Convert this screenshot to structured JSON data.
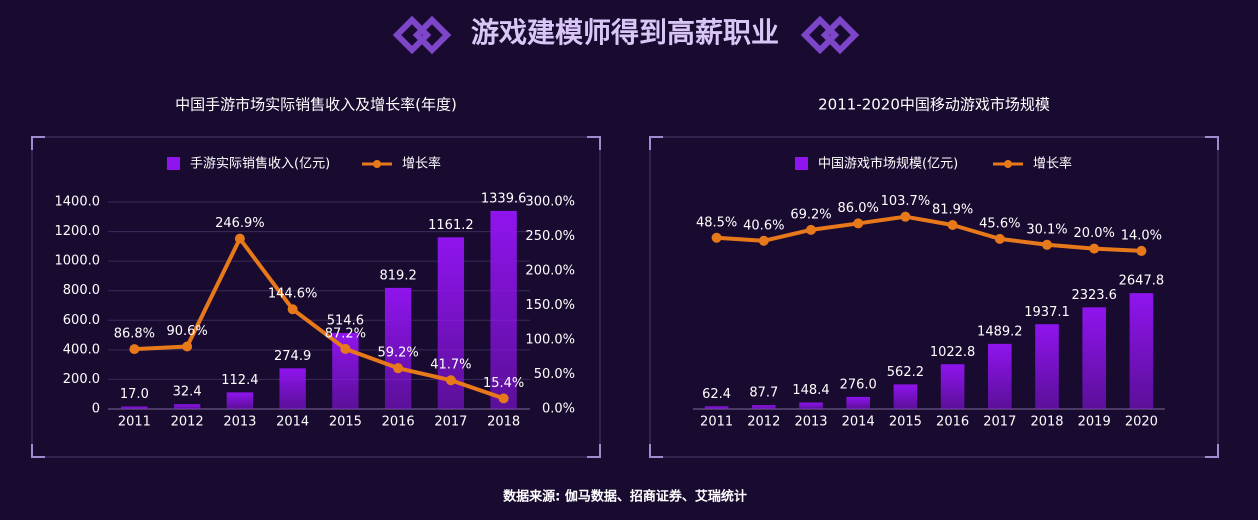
{
  "header": {
    "title": "游戏建模师得到高薪职业"
  },
  "chart_data": [
    {
      "type": "bar",
      "title": "中国手游市场实际销售收入及增长率(年度)",
      "categories": [
        "2011",
        "2012",
        "2013",
        "2014",
        "2015",
        "2016",
        "2017",
        "2018"
      ],
      "series": [
        {
          "name": "手游实际销售收入(亿元)",
          "type": "bar",
          "color": "#9014ee",
          "values": [
            17.0,
            32.4,
            112.4,
            274.9,
            514.6,
            819.2,
            1161.2,
            1339.6
          ],
          "value_labels": [
            "17.0",
            "32.4",
            "112.4",
            "274.9",
            "514.6",
            "819.2",
            "1161.2",
            "1339.6"
          ]
        },
        {
          "name": "增长率",
          "type": "line",
          "axis": "y2",
          "color": "#e8791b",
          "values": [
            86.8,
            90.6,
            246.9,
            144.6,
            87.2,
            59.2,
            41.7,
            15.4
          ],
          "value_labels": [
            "86.8%",
            "90.6%",
            "246.9%",
            "144.6%",
            "87.2%",
            "59.2%",
            "41.7%",
            "15.4%"
          ]
        }
      ],
      "ylim": [
        0,
        1400
      ],
      "yticks": [
        0,
        {
          "value": 200,
          "label": "200.0"
        },
        {
          "value": 400,
          "label": "400.0"
        },
        {
          "value": 600,
          "label": "600.0"
        },
        {
          "value": 800,
          "label": "800.0"
        },
        {
          "value": 1000,
          "label": "1000.0"
        },
        {
          "value": 1200,
          "label": "1200.0"
        },
        {
          "value": 1400,
          "label": "1400.0"
        }
      ],
      "y2lim": [
        0,
        300
      ],
      "y2ticks": [
        {
          "value": 0,
          "label": "0.0%"
        },
        {
          "value": 50,
          "label": "50.0%"
        },
        {
          "value": 100,
          "label": "100.0%"
        },
        {
          "value": 150,
          "label": "150.0%"
        },
        {
          "value": 200,
          "label": "200.0%"
        },
        {
          "value": 250,
          "label": "250.0%"
        },
        {
          "value": 300,
          "label": "300.0%"
        }
      ],
      "grid": true
    },
    {
      "type": "bar",
      "title": "2011-2020中国移动游戏市场规模",
      "categories": [
        "2011",
        "2012",
        "2013",
        "2014",
        "2015",
        "2016",
        "2017",
        "2018",
        "2019",
        "2020"
      ],
      "series": [
        {
          "name": "中国游戏市场规模(亿元)",
          "type": "bar",
          "color": "#9014ee",
          "values": [
            62.4,
            87.7,
            148.4,
            276.0,
            562.2,
            1022.8,
            1489.2,
            1937.1,
            2323.6,
            2647.8
          ],
          "value_labels": [
            "62.4",
            "87.7",
            "148.4",
            "276.0",
            "562.2",
            "1022.8",
            "1489.2",
            "1937.1",
            "2323.6",
            "2647.8"
          ]
        },
        {
          "name": "增长率",
          "type": "line",
          "axis": "y2",
          "color": "#e8791b",
          "values": [
            48.5,
            40.6,
            69.2,
            86.0,
            103.7,
            81.9,
            45.6,
            30.1,
            20.0,
            14.0
          ],
          "value_labels": [
            "48.5%",
            "40.6%",
            "69.2%",
            "86.0%",
            "103.7%",
            "81.9%",
            "45.6%",
            "30.1%",
            "20.0%",
            "14.0%"
          ]
        }
      ],
      "ylim": [
        0,
        4800
      ],
      "y2lim": [
        -400,
        150
      ],
      "grid": false
    }
  ],
  "footer": {
    "source": "数据来源: 伽马数据、招商证券、艾瑞统计"
  }
}
